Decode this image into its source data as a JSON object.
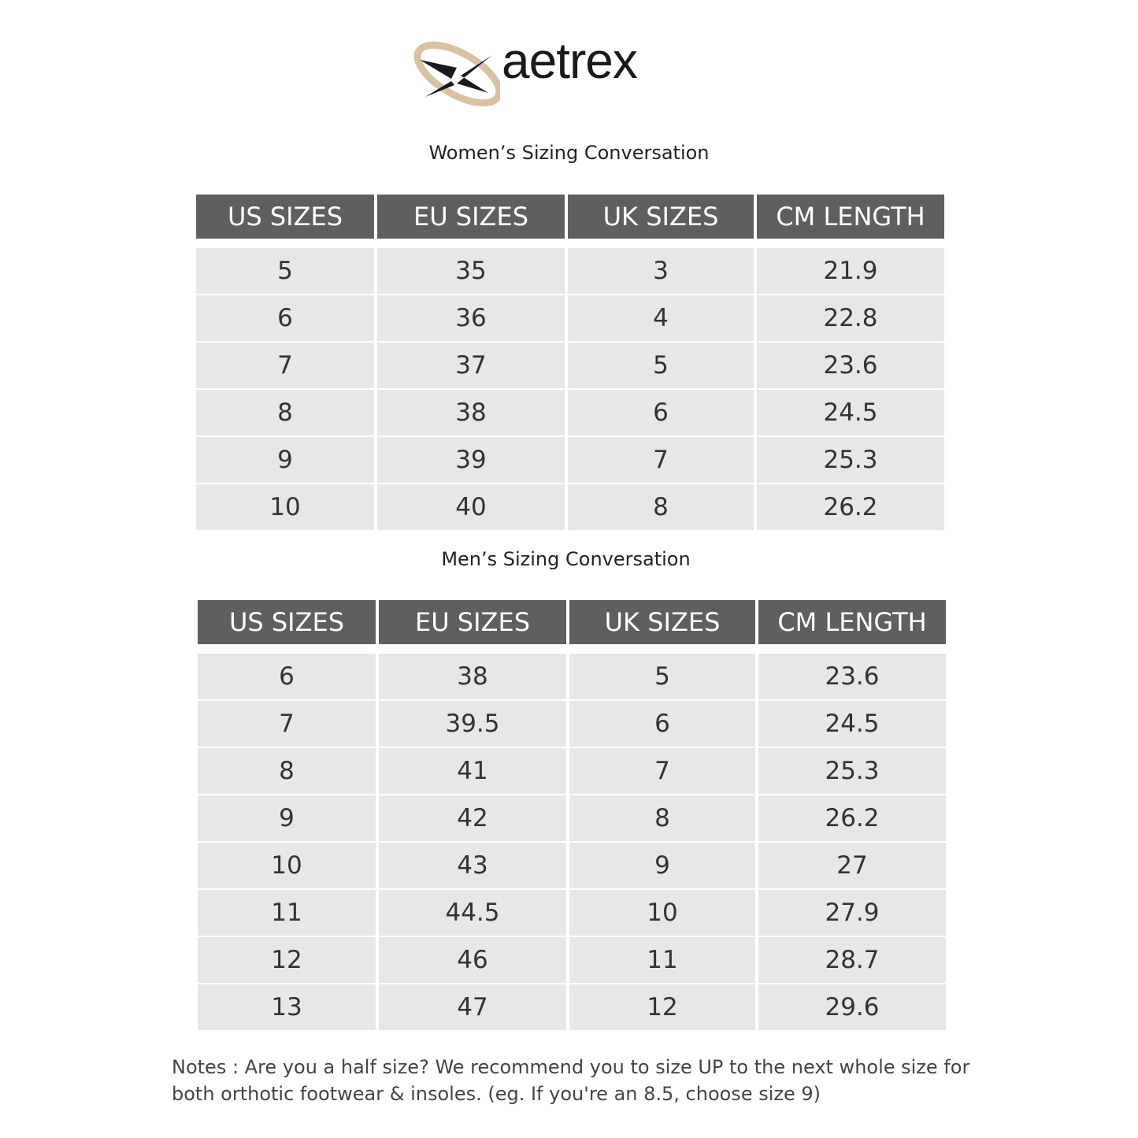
{
  "brand": {
    "name": "aetrex",
    "ring_color": "#d9c2a3",
    "mark_color": "#1a1a1a"
  },
  "colors": {
    "header_bg": "#5f5f5f",
    "cell_bg": "#e7e7e7"
  },
  "women": {
    "title": "Women’s Sizing Conversation",
    "headers": [
      "US SIZES",
      "EU SIZES",
      "UK SIZES",
      "CM LENGTH"
    ],
    "rows": [
      [
        "5",
        "35",
        "3",
        "21.9"
      ],
      [
        "6",
        "36",
        "4",
        "22.8"
      ],
      [
        "7",
        "37",
        "5",
        "23.6"
      ],
      [
        "8",
        "38",
        "6",
        "24.5"
      ],
      [
        "9",
        "39",
        "7",
        "25.3"
      ],
      [
        "10",
        "40",
        "8",
        "26.2"
      ]
    ]
  },
  "men": {
    "title": "Men’s Sizing Conversation",
    "headers": [
      "US SIZES",
      "EU SIZES",
      "UK SIZES",
      "CM LENGTH"
    ],
    "rows": [
      [
        "6",
        "38",
        "5",
        "23.6"
      ],
      [
        "7",
        "39.5",
        "6",
        "24.5"
      ],
      [
        "8",
        "41",
        "7",
        "25.3"
      ],
      [
        "9",
        "42",
        "8",
        "26.2"
      ],
      [
        "10",
        "43",
        "9",
        "27"
      ],
      [
        "11",
        "44.5",
        "10",
        "27.9"
      ],
      [
        "12",
        "46",
        "11",
        "28.7"
      ],
      [
        "13",
        "47",
        "12",
        "29.6"
      ]
    ]
  },
  "notes": "Notes : Are you a half size? We recommend you to size UP to the next whole size for both orthotic footwear & insoles. (eg. If you're an 8.5, choose size 9)"
}
